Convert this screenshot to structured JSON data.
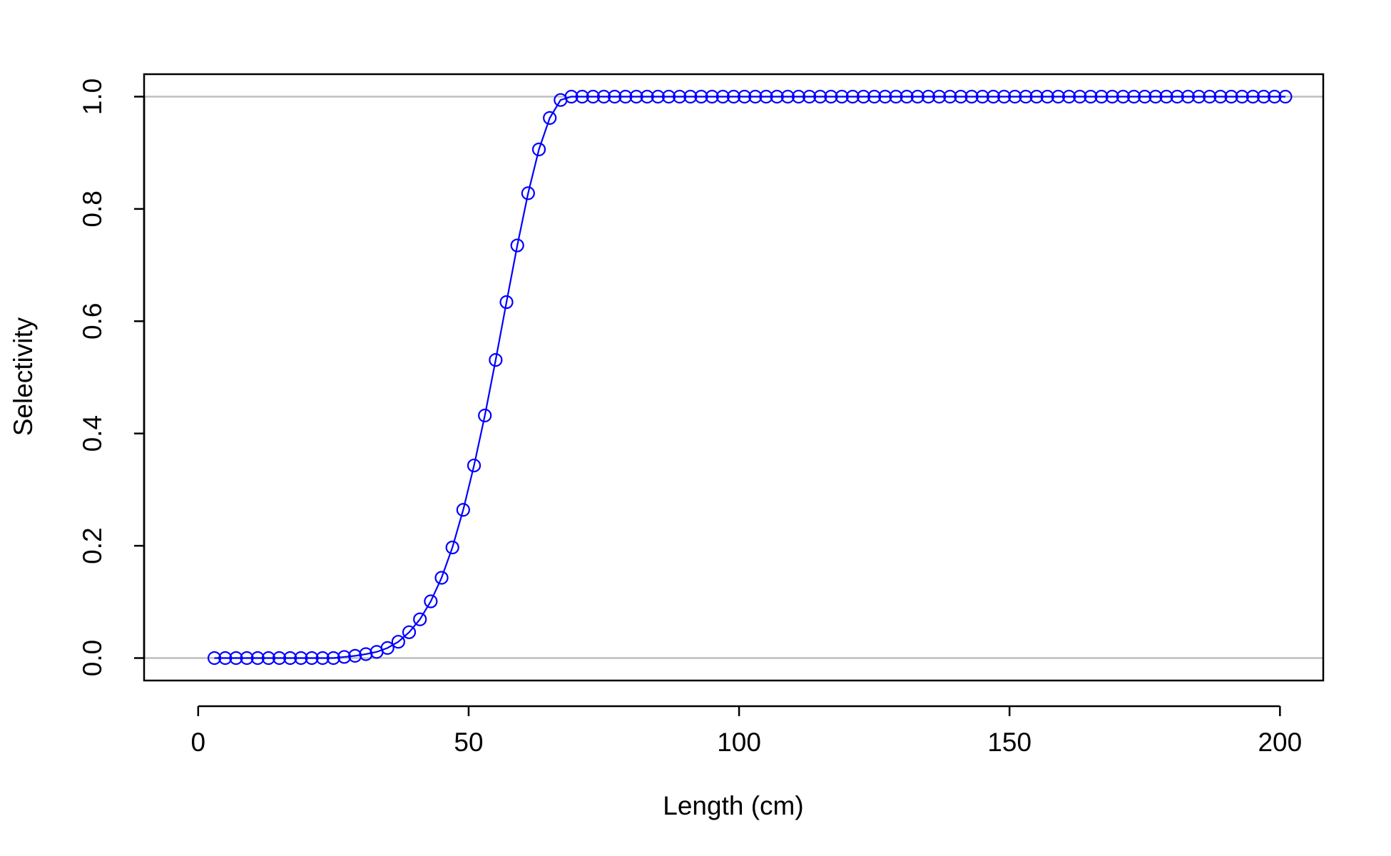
{
  "chart_data": {
    "type": "line",
    "title": "",
    "xlabel": "Length (cm)",
    "ylabel": "Selectivity",
    "xlim": [
      -10,
      208
    ],
    "ylim": [
      -0.04,
      1.04
    ],
    "x_ticks": [
      0,
      50,
      100,
      150,
      200
    ],
    "x_tick_labels": [
      "0",
      "50",
      "100",
      "150",
      "200"
    ],
    "y_ticks": [
      0.0,
      0.2,
      0.4,
      0.6,
      0.8,
      1.0
    ],
    "y_tick_labels": [
      "0.0",
      "0.2",
      "0.4",
      "0.6",
      "0.8",
      "1.0"
    ],
    "reference_lines_y": [
      0,
      1
    ],
    "grid": false,
    "legend": "none",
    "marker": "open-circle",
    "colors": {
      "series": "#0000ff",
      "reference_line": "#bebebe",
      "frame": "#000000"
    },
    "series": [
      {
        "x": [
          3,
          5,
          7,
          9,
          11,
          13,
          15,
          17,
          19,
          21,
          23,
          25,
          27,
          29,
          31,
          33,
          35,
          37,
          39,
          41,
          43,
          45,
          47,
          49,
          51,
          53,
          55,
          57,
          59,
          61,
          63,
          65,
          67,
          69,
          71,
          73,
          75,
          77,
          79,
          81,
          83,
          85,
          87,
          89,
          91,
          93,
          95,
          97,
          99,
          101,
          103,
          105,
          107,
          109,
          111,
          113,
          115,
          117,
          119,
          121,
          123,
          125,
          127,
          129,
          131,
          133,
          135,
          137,
          139,
          141,
          143,
          145,
          147,
          149,
          151,
          153,
          155,
          157,
          159,
          161,
          163,
          165,
          167,
          169,
          171,
          173,
          175,
          177,
          179,
          181,
          183,
          185,
          187,
          189,
          191,
          193,
          195,
          197,
          199,
          201
        ],
        "values": [
          0,
          0,
          0,
          0,
          0,
          0,
          0,
          0,
          0,
          0,
          0,
          0,
          0.002,
          0.004,
          0.007,
          0.011,
          0.018,
          0.029,
          0.046,
          0.069,
          0.101,
          0.143,
          0.197,
          0.264,
          0.343,
          0.432,
          0.531,
          0.634,
          0.735,
          0.828,
          0.906,
          0.962,
          0.994,
          1,
          1,
          1,
          1,
          1,
          1,
          1,
          1,
          1,
          1,
          1,
          1,
          1,
          1,
          1,
          1,
          1,
          1,
          1,
          1,
          1,
          1,
          1,
          1,
          1,
          1,
          1,
          1,
          1,
          1,
          1,
          1,
          1,
          1,
          1,
          1,
          1,
          1,
          1,
          1,
          1,
          1,
          1,
          1,
          1,
          1,
          1,
          1,
          1,
          1,
          1,
          1,
          1,
          1,
          1,
          1,
          1,
          1,
          1,
          1,
          1,
          1,
          1,
          1,
          1,
          1,
          1
        ]
      }
    ]
  }
}
